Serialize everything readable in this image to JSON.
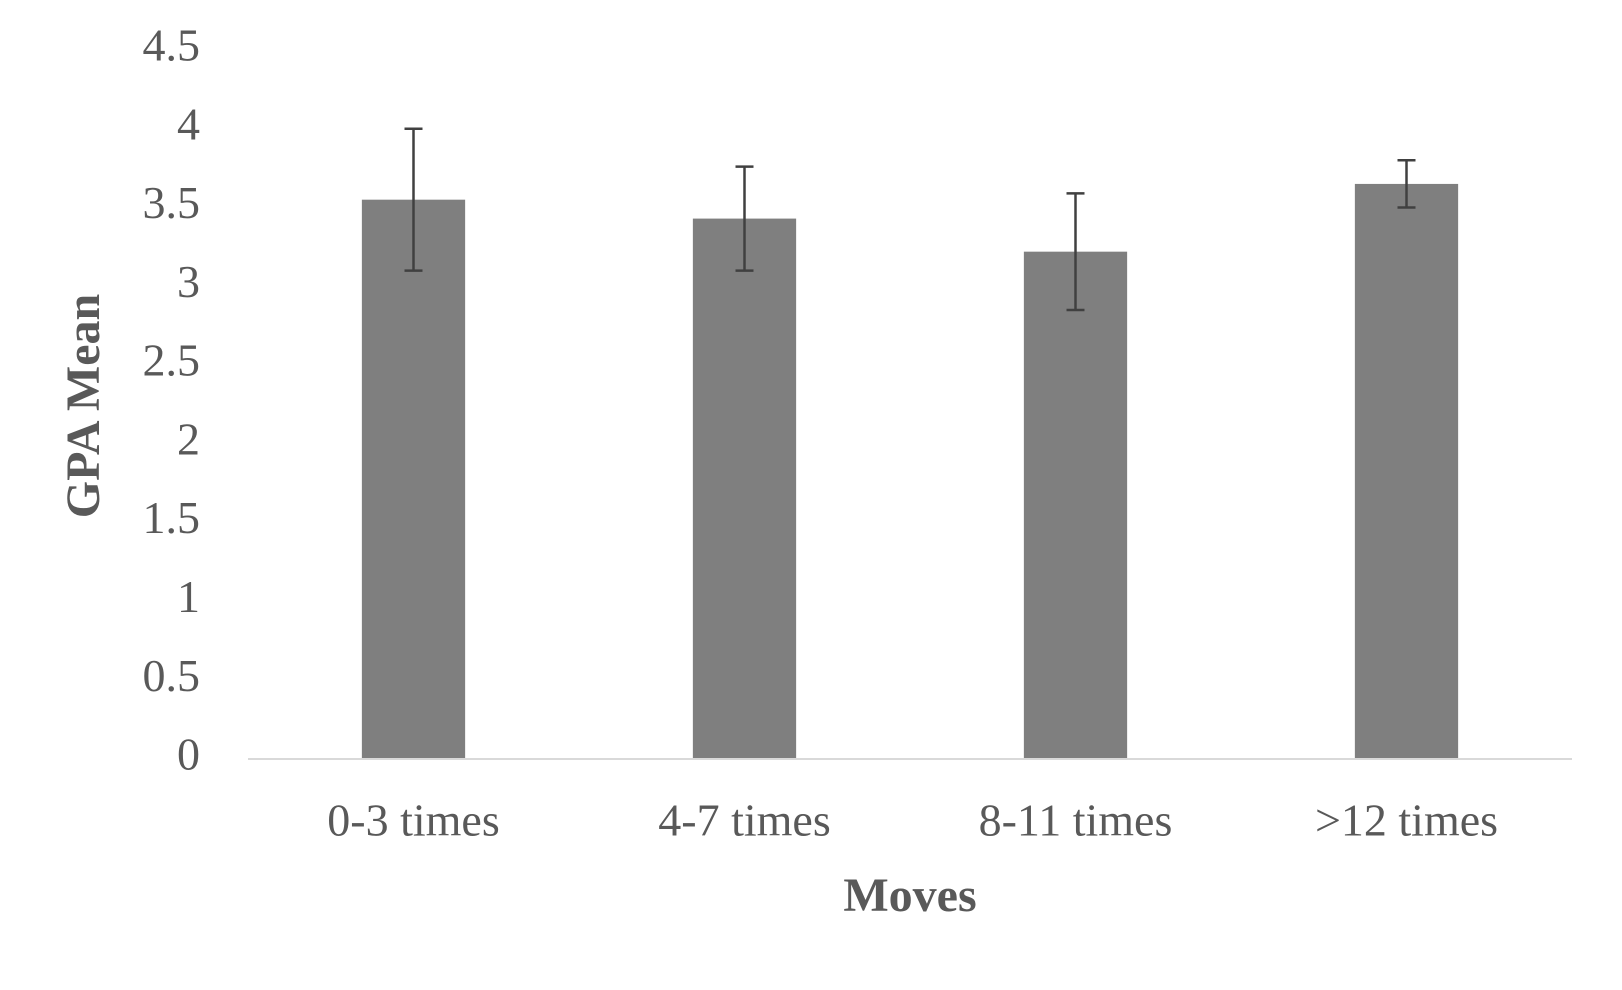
{
  "chart_data": {
    "type": "bar",
    "x_label": "Moves",
    "y_label": "GPA Mean",
    "categories": [
      "0-3 times",
      "4-7 times",
      "8-11 times",
      ">12 times"
    ],
    "values": [
      3.55,
      3.43,
      3.22,
      3.65
    ],
    "errors": [
      0.45,
      0.33,
      0.37,
      0.15
    ],
    "color": "#7f7f7f",
    "ylim": [
      0,
      4.5
    ],
    "yticks": [
      0,
      0.5,
      1,
      1.5,
      2,
      2.5,
      3,
      3.5,
      4,
      4.5
    ]
  }
}
